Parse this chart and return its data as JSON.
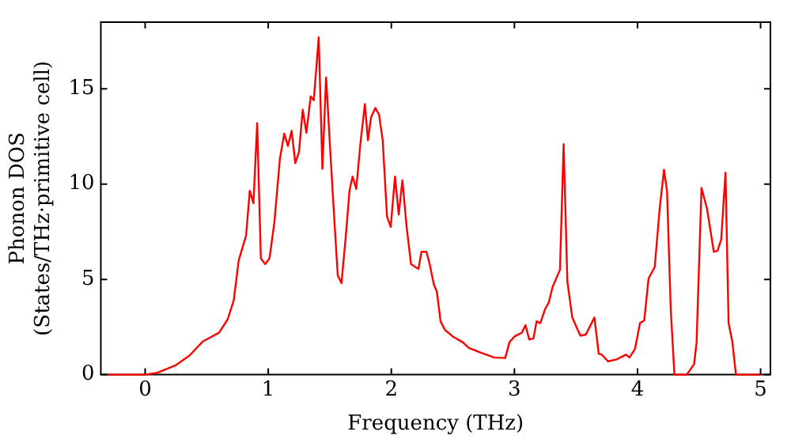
{
  "chart_data": {
    "type": "line",
    "xlabel": "Frequency (THz)",
    "ylabel": "Phonon DOS\n(States/THz·primitive cell)",
    "xlim": [
      -0.36,
      5.08
    ],
    "ylim": [
      0,
      18.5
    ],
    "xticks": [
      0,
      1,
      2,
      3,
      4,
      5
    ],
    "yticks": [
      0,
      5,
      10,
      15
    ],
    "grid": false,
    "legend": false,
    "marker": "none",
    "line_style": "solid",
    "series": [
      {
        "color": "#ff0000",
        "x": [
          -0.3,
          0,
          0.1,
          0.25,
          0.36,
          0.47,
          0.6,
          0.67,
          0.72,
          0.76,
          0.82,
          0.85,
          0.88,
          0.91,
          0.94,
          0.975,
          1.01,
          1.05,
          1.095,
          1.13,
          1.16,
          1.19,
          1.22,
          1.25,
          1.28,
          1.31,
          1.345,
          1.37,
          1.41,
          1.44,
          1.47,
          1.51,
          1.54,
          1.565,
          1.595,
          1.63,
          1.66,
          1.685,
          1.715,
          1.75,
          1.785,
          1.81,
          1.835,
          1.87,
          1.9,
          1.93,
          1.965,
          1.995,
          2.03,
          2.06,
          2.09,
          2.125,
          2.16,
          2.22,
          2.245,
          2.285,
          2.31,
          2.345,
          2.37,
          2.4,
          2.435,
          2.5,
          2.58,
          2.63,
          2.72,
          2.835,
          2.925,
          2.96,
          3.0,
          3.06,
          3.09,
          3.12,
          3.155,
          3.18,
          3.21,
          3.25,
          3.28,
          3.31,
          3.37,
          3.4,
          3.43,
          3.47,
          3.535,
          3.58,
          3.65,
          3.685,
          3.71,
          3.76,
          3.83,
          3.905,
          3.935,
          3.98,
          4.02,
          4.055,
          4.09,
          4.14,
          4.18,
          4.215,
          4.24,
          4.27,
          4.3,
          4.4,
          4.46,
          4.48,
          4.52,
          4.565,
          4.62,
          4.65,
          4.68,
          4.715,
          4.74,
          4.77,
          4.8,
          5.0
        ],
        "values": [
          0,
          0,
          0.1,
          0.5,
          1.0,
          1.75,
          2.2,
          2.9,
          3.9,
          6.0,
          7.3,
          9.65,
          9.0,
          13.2,
          6.1,
          5.8,
          6.1,
          8.0,
          11.35,
          12.65,
          12.0,
          12.8,
          11.1,
          11.7,
          13.9,
          12.7,
          14.6,
          14.4,
          17.7,
          10.8,
          15.6,
          11.05,
          7.8,
          5.2,
          4.8,
          7.25,
          9.65,
          10.4,
          9.75,
          12.2,
          14.2,
          12.3,
          13.5,
          14.0,
          13.65,
          12.3,
          8.3,
          7.75,
          10.4,
          8.4,
          10.2,
          7.7,
          5.8,
          5.55,
          6.45,
          6.45,
          5.85,
          4.75,
          4.35,
          2.8,
          2.35,
          2.0,
          1.7,
          1.4,
          1.17,
          0.9,
          0.87,
          1.7,
          2.0,
          2.2,
          2.6,
          1.85,
          1.9,
          2.8,
          2.7,
          3.45,
          3.8,
          4.6,
          5.5,
          12.1,
          4.9,
          3.0,
          2.05,
          2.1,
          3.0,
          1.1,
          1.05,
          0.7,
          0.8,
          1.05,
          0.9,
          1.35,
          2.7,
          2.85,
          5.05,
          5.65,
          8.7,
          10.75,
          9.65,
          3.45,
          0,
          0,
          0.55,
          1.7,
          9.8,
          8.7,
          6.45,
          6.5,
          7.1,
          10.6,
          2.7,
          1.75,
          0,
          0
        ]
      }
    ]
  }
}
